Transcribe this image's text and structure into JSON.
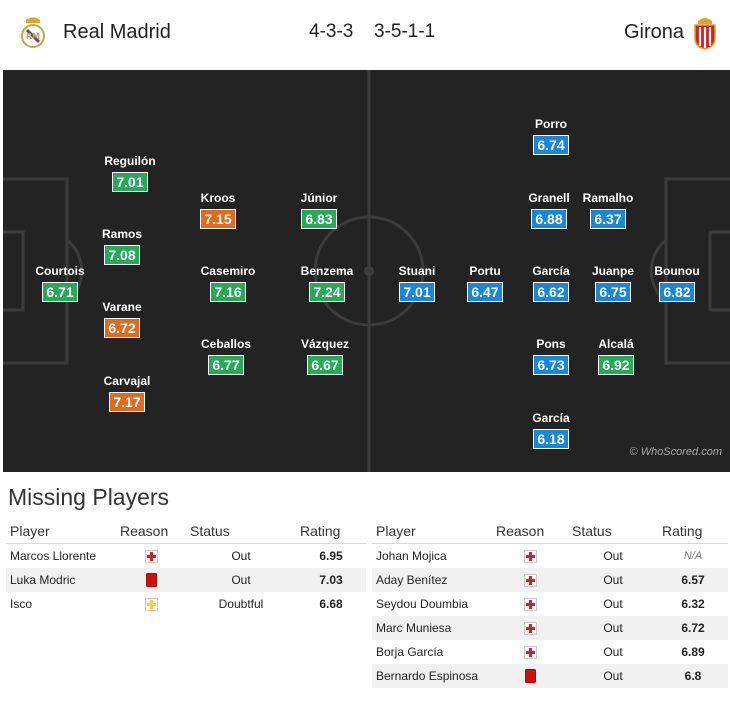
{
  "header": {
    "home_team": "Real Madrid",
    "home_formation": "4-3-3",
    "away_formation": "3-5-1-1",
    "away_team": "Girona"
  },
  "pitch": {
    "watermark": "© WhoScored.com",
    "home_players": [
      {
        "name": "Courtois",
        "rating": "6.71",
        "color": "green"
      },
      {
        "name": "Reguilón",
        "rating": "7.01",
        "color": "green"
      },
      {
        "name": "Ramos",
        "rating": "7.08",
        "color": "green"
      },
      {
        "name": "Varane",
        "rating": "6.72",
        "color": "orange"
      },
      {
        "name": "Carvajal",
        "rating": "7.17",
        "color": "orange"
      },
      {
        "name": "Kroos",
        "rating": "7.15",
        "color": "orange"
      },
      {
        "name": "Casemiro",
        "rating": "7.16",
        "color": "green"
      },
      {
        "name": "Ceballos",
        "rating": "6.77",
        "color": "green"
      },
      {
        "name": "Júnior",
        "rating": "6.83",
        "color": "green"
      },
      {
        "name": "Benzema",
        "rating": "7.24",
        "color": "green"
      },
      {
        "name": "Vázquez",
        "rating": "6.67",
        "color": "green"
      }
    ],
    "away_players": [
      {
        "name": "Bounou",
        "rating": "6.82",
        "color": "blue"
      },
      {
        "name": "Ramalho",
        "rating": "6.37",
        "color": "blue"
      },
      {
        "name": "Juanpe",
        "rating": "6.75",
        "color": "blue"
      },
      {
        "name": "Alcalá",
        "rating": "6.92",
        "color": "green"
      },
      {
        "name": "Porro",
        "rating": "6.74",
        "color": "blue"
      },
      {
        "name": "Granell",
        "rating": "6.88",
        "color": "blue"
      },
      {
        "name": "García",
        "rating": "6.62",
        "color": "blue"
      },
      {
        "name": "Pons",
        "rating": "6.73",
        "color": "blue"
      },
      {
        "name": "García",
        "rating": "6.18",
        "color": "blue"
      },
      {
        "name": "Portu",
        "rating": "6.47",
        "color": "blue"
      },
      {
        "name": "Stuani",
        "rating": "7.01",
        "color": "blue"
      }
    ]
  },
  "colors": {
    "pitch": "#232323",
    "rating_green": "#27a85a",
    "rating_orange": "#e06a1d",
    "rating_blue": "#1a87d6",
    "missing_rating": "#c0621c",
    "injury_red": "#d42020",
    "suspension_red": "#cc1111",
    "doubtful_yellow": "#f3d23a"
  },
  "missing": {
    "title": "Missing Players",
    "headers": {
      "player": "Player",
      "reason": "Reason",
      "status": "Status",
      "rating": "Rating"
    },
    "home": [
      {
        "player": "Marcos Llorente",
        "reason_icon": "injury-icon",
        "status": "Out",
        "rating": "6.95"
      },
      {
        "player": "Luka Modric",
        "reason_icon": "red-card-icon",
        "status": "Out",
        "rating": "7.03"
      },
      {
        "player": "Isco",
        "reason_icon": "doubtful-icon",
        "status": "Doubtful",
        "rating": "6.68"
      }
    ],
    "away": [
      {
        "player": "Johan Mojica",
        "reason_icon": "injury-icon",
        "status": "Out",
        "rating": "N/A"
      },
      {
        "player": "Aday Benítez",
        "reason_icon": "injury-icon",
        "status": "Out",
        "rating": "6.57"
      },
      {
        "player": "Seydou Doumbia",
        "reason_icon": "injury-icon",
        "status": "Out",
        "rating": "6.32"
      },
      {
        "player": "Marc Muniesa",
        "reason_icon": "injury-icon",
        "status": "Out",
        "rating": "6.72"
      },
      {
        "player": "Borja García",
        "reason_icon": "injury-icon",
        "status": "Out",
        "rating": "6.89"
      },
      {
        "player": "Bernardo Espinosa",
        "reason_icon": "red-card-icon",
        "status": "Out",
        "rating": "6.8"
      }
    ]
  }
}
